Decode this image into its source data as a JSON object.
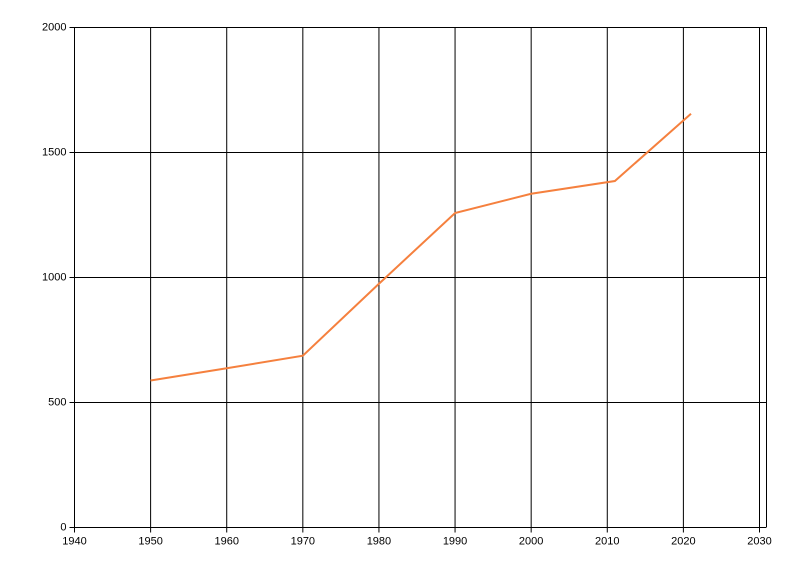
{
  "chart_data": {
    "type": "line",
    "x": [
      1950,
      1960,
      1970,
      1980,
      1990,
      2000,
      2011,
      2021
    ],
    "series": [
      {
        "color": "#f5803e",
        "values": [
          588,
          637,
          687,
          975,
          1258,
          1335,
          1386,
          1655
        ]
      }
    ],
    "xlim": [
      1940,
      2030
    ],
    "xticks": [
      1940,
      1950,
      1960,
      1970,
      1980,
      1990,
      2000,
      2010,
      2020,
      2030
    ],
    "ylim": [
      0,
      2000
    ],
    "yticks": [
      0,
      500,
      1000,
      1500,
      2000
    ],
    "grid": true
  }
}
